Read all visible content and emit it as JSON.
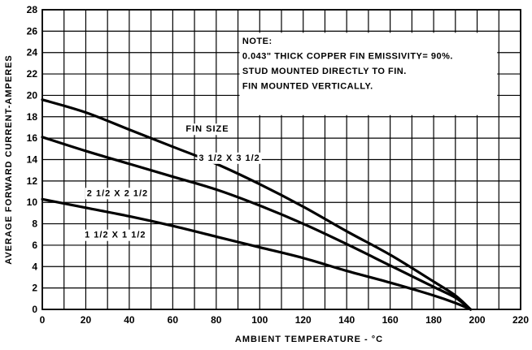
{
  "chart_data": {
    "type": "line",
    "title": "",
    "xlabel": "AMBIENT TEMPERATURE - °C",
    "ylabel": "AVERAGE FORWARD CURRENT-AMPERES",
    "xlim": [
      0,
      220
    ],
    "ylim": [
      0,
      28
    ],
    "x_grid_step": 10,
    "y_grid_step": 2,
    "x_tick_step": 20,
    "y_tick_step": 2,
    "x_ticks": [
      "0",
      "20",
      "40",
      "60",
      "80",
      "100",
      "120",
      "140",
      "160",
      "180",
      "200",
      "220"
    ],
    "y_ticks": [
      "0",
      "2",
      "4",
      "6",
      "8",
      "10",
      "12",
      "14",
      "16",
      "18",
      "20",
      "22",
      "24",
      "26",
      "28"
    ],
    "grid": true,
    "note_lines": [
      "NOTE:",
      "0.043\" THICK COPPER FIN EMISSIVITY= 90%.",
      "STUD MOUNTED DIRECTLY TO FIN.",
      "FIN MOUNTED VERTICALLY."
    ],
    "legend_title": "FIN SIZE",
    "series": [
      {
        "name": "3 1/2 X 3 1/2",
        "x": [
          0,
          20,
          40,
          60,
          80,
          100,
          120,
          140,
          160,
          180,
          190,
          197
        ],
        "y": [
          19.6,
          18.4,
          16.8,
          15.2,
          13.6,
          11.7,
          9.6,
          7.3,
          5.1,
          2.6,
          1.3,
          0
        ]
      },
      {
        "name": "2 1/2 X 2 1/2",
        "x": [
          0,
          20,
          40,
          60,
          80,
          100,
          120,
          140,
          160,
          180,
          190,
          197
        ],
        "y": [
          16.1,
          14.8,
          13.6,
          12.4,
          11.2,
          9.7,
          8.0,
          6.1,
          4.1,
          2.1,
          1.1,
          0
        ]
      },
      {
        "name": "1 1/2 X 1 1/2",
        "x": [
          0,
          20,
          40,
          60,
          80,
          100,
          120,
          140,
          160,
          180,
          190,
          197
        ],
        "y": [
          10.3,
          9.5,
          8.7,
          7.8,
          6.8,
          5.8,
          4.8,
          3.6,
          2.5,
          1.3,
          0.6,
          0
        ]
      }
    ]
  }
}
